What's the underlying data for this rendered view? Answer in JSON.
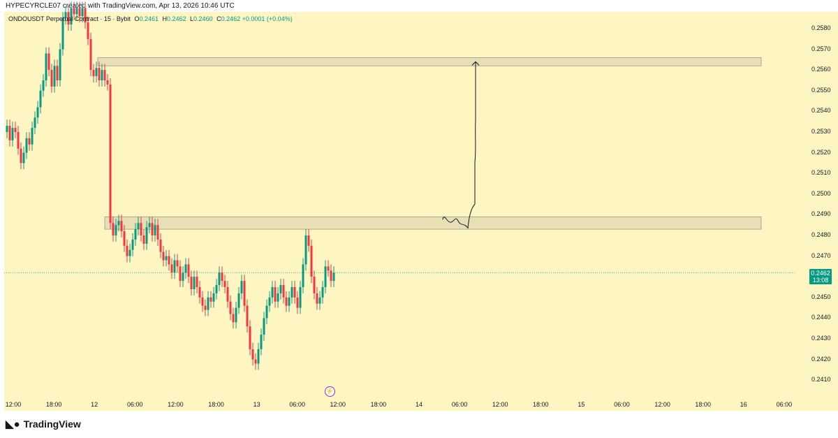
{
  "header": {
    "attribution": "HYPECYRCLE07 created with TradingView.com, Apr 13, 2026 10:46 UTC"
  },
  "legend": {
    "symbol": "ONDOUSDT Perpetual Contract · 15 · Bybit",
    "open_label": "O",
    "open": "0.2461",
    "high_label": "H",
    "high": "0.2462",
    "low_label": "L",
    "low": "0.2460",
    "close_label": "C",
    "close": "0.2462",
    "change": "+0.0001 (+0.04%)"
  },
  "price_badge": {
    "price": "0.2462",
    "countdown": "13:08"
  },
  "footer": {
    "brand": "TradingView",
    "logo_icon": "tradingview-logo-icon"
  },
  "colors": {
    "up": "#089981",
    "down": "#f23645",
    "background": "#fdf6c2",
    "zone": "#e8dfb5"
  },
  "chart_data": {
    "type": "candlestick",
    "symbol": "ONDOUSDT",
    "interval": "15",
    "exchange": "Bybit",
    "ylim": [
      0.2405,
      0.2588
    ],
    "y_ticks": [
      "0.2580",
      "0.2570",
      "0.2560",
      "0.2550",
      "0.2540",
      "0.2530",
      "0.2520",
      "0.2510",
      "0.2500",
      "0.2490",
      "0.2480",
      "0.2470",
      "0.2450",
      "0.2440",
      "0.2430",
      "0.2420",
      "0.2410"
    ],
    "x_ticks": [
      "12:00",
      "18:00",
      "12",
      "06:00",
      "12:00",
      "18:00",
      "13",
      "06:00",
      "12:00",
      "18:00",
      "14",
      "06:00",
      "12:00",
      "18:00",
      "15",
      "06:00",
      "12:00",
      "18:00",
      "16",
      "06:00"
    ],
    "last_price": 0.2462,
    "price_path": [
      [
        0,
        0.253
      ],
      [
        4,
        0.2533
      ],
      [
        8,
        0.2526
      ],
      [
        12,
        0.2532
      ],
      [
        16,
        0.253
      ],
      [
        20,
        0.2522
      ],
      [
        24,
        0.2515
      ],
      [
        28,
        0.252
      ],
      [
        32,
        0.2527
      ],
      [
        36,
        0.2524
      ],
      [
        40,
        0.2532
      ],
      [
        44,
        0.2537
      ],
      [
        48,
        0.2542
      ],
      [
        52,
        0.255
      ],
      [
        56,
        0.2555
      ],
      [
        60,
        0.2568
      ],
      [
        64,
        0.256
      ],
      [
        68,
        0.2552
      ],
      [
        72,
        0.2562
      ],
      [
        76,
        0.2555
      ],
      [
        80,
        0.257
      ],
      [
        84,
        0.2585
      ],
      [
        88,
        0.2588
      ],
      [
        92,
        0.2582
      ],
      [
        96,
        0.259
      ],
      [
        100,
        0.2587
      ],
      [
        104,
        0.259
      ],
      [
        108,
        0.2586
      ],
      [
        112,
        0.259
      ],
      [
        116,
        0.2583
      ],
      [
        120,
        0.2575
      ],
      [
        124,
        0.256
      ],
      [
        128,
        0.2557
      ],
      [
        132,
        0.2561
      ],
      [
        136,
        0.2555
      ],
      [
        140,
        0.256
      ],
      [
        144,
        0.2555
      ],
      [
        148,
        0.2553
      ],
      [
        152,
        0.2486
      ],
      [
        156,
        0.248
      ],
      [
        160,
        0.2485
      ],
      [
        164,
        0.2487
      ],
      [
        168,
        0.2482
      ],
      [
        172,
        0.2475
      ],
      [
        176,
        0.247
      ],
      [
        180,
        0.2473
      ],
      [
        184,
        0.2478
      ],
      [
        188,
        0.2483
      ],
      [
        192,
        0.2486
      ],
      [
        196,
        0.248
      ],
      [
        200,
        0.2476
      ],
      [
        204,
        0.2484
      ],
      [
        208,
        0.2486
      ],
      [
        212,
        0.248
      ],
      [
        216,
        0.2485
      ],
      [
        220,
        0.2478
      ],
      [
        224,
        0.2472
      ],
      [
        228,
        0.2468
      ],
      [
        232,
        0.247
      ],
      [
        236,
        0.2466
      ],
      [
        240,
        0.2462
      ],
      [
        244,
        0.2468
      ],
      [
        248,
        0.2465
      ],
      [
        252,
        0.2458
      ],
      [
        256,
        0.2462
      ],
      [
        260,
        0.2466
      ],
      [
        264,
        0.246
      ],
      [
        268,
        0.2454
      ],
      [
        272,
        0.246
      ],
      [
        276,
        0.2455
      ],
      [
        280,
        0.245
      ],
      [
        284,
        0.2446
      ],
      [
        288,
        0.2444
      ],
      [
        292,
        0.245
      ],
      [
        296,
        0.2448
      ],
      [
        300,
        0.2452
      ],
      [
        304,
        0.2456
      ],
      [
        308,
        0.2462
      ],
      [
        312,
        0.2458
      ],
      [
        316,
        0.2455
      ],
      [
        320,
        0.2448
      ],
      [
        324,
        0.2442
      ],
      [
        328,
        0.2438
      ],
      [
        332,
        0.2445
      ],
      [
        336,
        0.2452
      ],
      [
        340,
        0.2458
      ],
      [
        344,
        0.2446
      ],
      [
        348,
        0.2436
      ],
      [
        352,
        0.2425
      ],
      [
        356,
        0.242
      ],
      [
        360,
        0.2418
      ],
      [
        364,
        0.2425
      ],
      [
        368,
        0.2432
      ],
      [
        372,
        0.244
      ],
      [
        376,
        0.2446
      ],
      [
        380,
        0.245
      ],
      [
        384,
        0.2455
      ],
      [
        388,
        0.2448
      ],
      [
        392,
        0.2452
      ],
      [
        396,
        0.2456
      ],
      [
        400,
        0.245
      ],
      [
        404,
        0.2446
      ],
      [
        408,
        0.245
      ],
      [
        412,
        0.2455
      ],
      [
        416,
        0.245
      ],
      [
        420,
        0.2445
      ],
      [
        424,
        0.2455
      ],
      [
        428,
        0.2466
      ],
      [
        432,
        0.248
      ],
      [
        436,
        0.2475
      ],
      [
        440,
        0.246
      ],
      [
        444,
        0.2452
      ],
      [
        448,
        0.2447
      ],
      [
        452,
        0.245
      ],
      [
        456,
        0.2455
      ],
      [
        460,
        0.2465
      ],
      [
        464,
        0.2463
      ],
      [
        468,
        0.2458
      ],
      [
        472,
        0.2462
      ]
    ],
    "zones": [
      {
        "x_start": 140,
        "x_end": 1090,
        "price_top": 0.2566,
        "price_bottom": 0.2562
      },
      {
        "x_start": 150,
        "x_end": 1090,
        "price_top": 0.2489,
        "price_bottom": 0.2483
      }
    ],
    "annotation_arrow": {
      "from_price": 0.2487,
      "to_price": 0.2564
    }
  }
}
